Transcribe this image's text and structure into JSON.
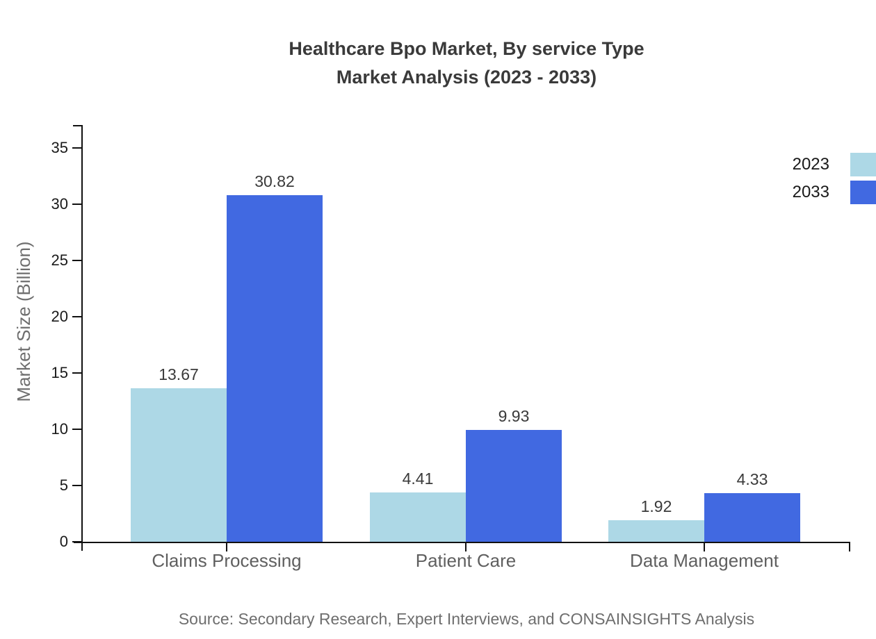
{
  "title": {
    "line1": "Healthcare Bpo Market, By service Type",
    "line2": "Market Analysis (2023 - 2033)"
  },
  "y_axis": {
    "label": "Market Size (Billion)",
    "ticks": [
      0,
      5,
      10,
      15,
      20,
      25,
      30,
      35
    ]
  },
  "legend": [
    {
      "label": "2023",
      "color": "#ADD8E6"
    },
    {
      "label": "2033",
      "color": "#4169E1"
    }
  ],
  "source": "Source: Secondary Research, Expert Interviews, and CONSAINSIGHTS Analysis",
  "chart_data": {
    "type": "bar",
    "title": "Healthcare Bpo Market, By service Type Market Analysis (2023 - 2033)",
    "categories": [
      "Claims Processing",
      "Patient Care",
      "Data Management"
    ],
    "series": [
      {
        "name": "2023",
        "color": "#ADD8E6",
        "values": [
          13.67,
          4.41,
          1.92
        ]
      },
      {
        "name": "2033",
        "color": "#4169E1",
        "values": [
          30.82,
          9.93,
          4.33
        ]
      }
    ],
    "value_labels": [
      [
        "13.67",
        "4.41",
        "1.92"
      ],
      [
        "30.82",
        "9.93",
        "4.33"
      ]
    ],
    "xlabel": "",
    "ylabel": "Market Size (Billion)",
    "ylim": [
      0,
      35
    ],
    "grid": false,
    "legend_position": "top-right"
  }
}
